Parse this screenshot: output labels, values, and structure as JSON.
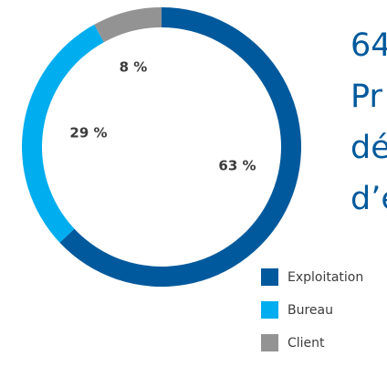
{
  "headline": {
    "lines": [
      "64",
      "Pr",
      "dé",
      "d’é"
    ],
    "color": "#00599c"
  },
  "chart_data": {
    "type": "pie",
    "donut": true,
    "title": "",
    "legend_position": "bottom-right",
    "slices": [
      {
        "name": "Exploitation",
        "value": 63,
        "label": "63 %",
        "color": "#00599c"
      },
      {
        "name": "Bureau",
        "value": 29,
        "label": "29 %",
        "color": "#00adef"
      },
      {
        "name": "Client",
        "value": 8,
        "label": "8 %",
        "color": "#939393"
      }
    ]
  }
}
